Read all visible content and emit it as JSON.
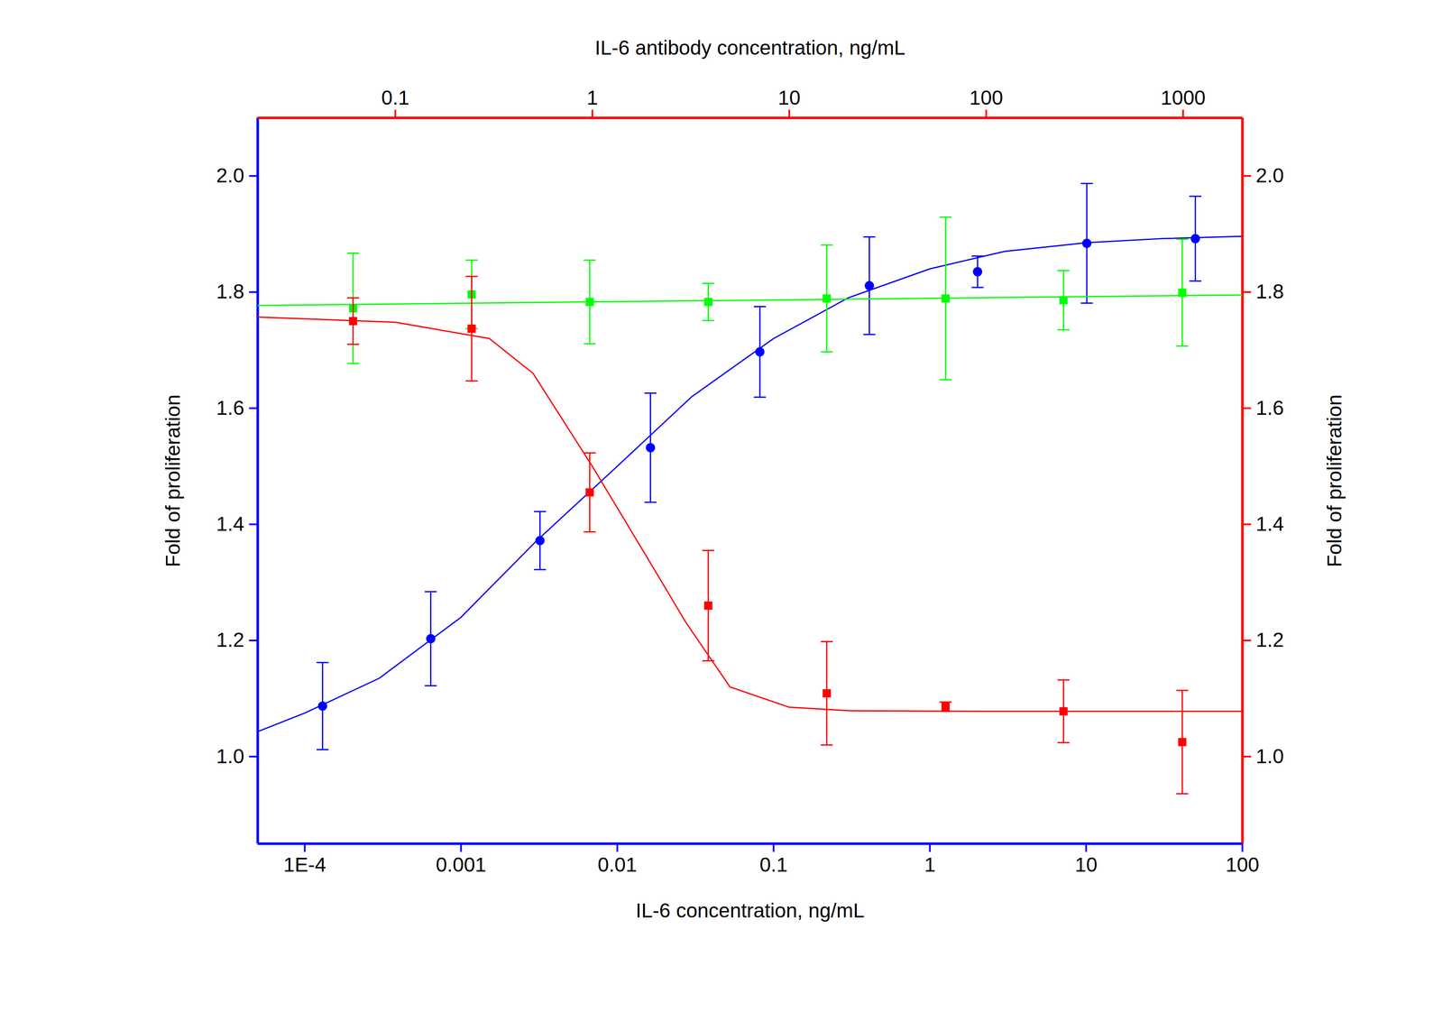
{
  "chart_data": {
    "type": "scatter",
    "xlabel": "IL-6 concentration, ng/mL",
    "x2label": "IL-6 antibody concentration, ng/mL",
    "ylabel": "Fold of proliferation",
    "y2label": "Fold of proliferation",
    "log": "x",
    "xlim": [
      5e-05,
      100
    ],
    "xticks": [
      {
        "value": 0.0001,
        "label": "1E-4"
      },
      0.001,
      0.01,
      0.1,
      1,
      10,
      100
    ],
    "x2lim": [
      0.02,
      2000
    ],
    "x2ticks": [
      0.1,
      1,
      10,
      100,
      1000
    ],
    "ylim": [
      0.85,
      2.1
    ],
    "yticks": [
      {
        "value": 1.0,
        "label": "1.0"
      },
      {
        "value": 1.2,
        "label": "1.2"
      },
      {
        "value": 1.4,
        "label": "1.4"
      },
      {
        "value": 1.6,
        "label": "1.6"
      },
      {
        "value": 1.8,
        "label": "1.8"
      },
      {
        "value": 2.0,
        "label": "2.0"
      }
    ],
    "y2lim": [
      0.85,
      2.1
    ],
    "y2ticks": [
      {
        "value": 1.0,
        "label": "1.0"
      },
      {
        "value": 1.2,
        "label": "1.2"
      },
      {
        "value": 1.4,
        "label": "1.4"
      },
      {
        "value": 1.6,
        "label": "1.6"
      },
      {
        "value": 1.8,
        "label": "1.8"
      },
      {
        "value": 2.0,
        "label": "2.0"
      }
    ],
    "series": [
      {
        "type": "scatter",
        "marker": "circle",
        "color": "#0000ff",
        "x": [
          0.00013,
          0.00064,
          0.0032,
          0.0163,
          0.0817,
          0.41,
          2.02,
          10.1,
          50
        ],
        "values": [
          1.087,
          1.203,
          1.372,
          1.532,
          1.697,
          1.811,
          1.835,
          1.884,
          1.892
        ],
        "errors": [
          0.075,
          0.081,
          0.05,
          0.094,
          0.078,
          0.084,
          0.027,
          0.103,
          0.073
        ]
      },
      {
        "type": "line",
        "color": "#0000ff",
        "x": [
          5e-05,
          0.0001,
          0.0003,
          0.001,
          0.003,
          0.01,
          0.03,
          0.1,
          0.3,
          1,
          3,
          10,
          30,
          100
        ],
        "values": [
          1.043,
          1.075,
          1.135,
          1.24,
          1.37,
          1.5,
          1.62,
          1.72,
          1.79,
          1.84,
          1.87,
          1.885,
          1.892,
          1.896
        ]
      },
      {
        "type": "scatter",
        "marker": "square",
        "color": "#00ff00",
        "axis": "y2",
        "x": [
          0.061,
          0.244,
          0.97,
          3.88,
          15.5,
          62.2,
          247,
          990
        ],
        "values": [
          1.772,
          1.796,
          1.783,
          1.783,
          1.789,
          1.789,
          1.786,
          1.799
        ],
        "errors": [
          0.095,
          0.059,
          0.072,
          0.032,
          0.092,
          0.14,
          0.051,
          0.092
        ]
      },
      {
        "type": "line",
        "color": "#00ff00",
        "axis": "y2",
        "x": [
          0.02,
          2000
        ],
        "values": [
          1.777,
          1.795
        ]
      },
      {
        "type": "scatter",
        "marker": "square",
        "color": "#ff0000",
        "axis": "y2",
        "x": [
          0.061,
          0.244,
          0.97,
          3.88,
          15.5,
          62.2,
          247,
          990
        ],
        "values": [
          1.75,
          1.737,
          1.455,
          1.26,
          1.109,
          1.086,
          1.078,
          1.025
        ],
        "errors": [
          0.04,
          0.09,
          0.068,
          0.095,
          0.089,
          0.008,
          0.054,
          0.089
        ]
      },
      {
        "type": "line",
        "color": "#ff0000",
        "axis": "y2",
        "x": [
          0.02,
          0.1,
          0.3,
          0.5,
          1,
          2,
          3,
          5,
          10,
          20,
          100,
          2000
        ],
        "values": [
          1.757,
          1.748,
          1.72,
          1.66,
          1.5,
          1.33,
          1.23,
          1.12,
          1.085,
          1.079,
          1.078,
          1.078
        ]
      }
    ]
  }
}
